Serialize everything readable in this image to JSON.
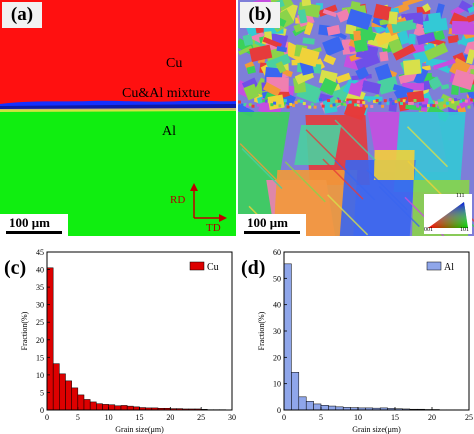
{
  "panel_a": {
    "tag": "(a)",
    "label_top": "Cu",
    "label_interface": "Cu&Al mixture",
    "label_bottom": "Al",
    "axis_rd": "RD",
    "axis_td": "TD",
    "scale": "100 μm",
    "colors": {
      "cu": "#ff1010",
      "al": "#10ee10",
      "interface": "#1530ff",
      "arrow": "#c00000"
    }
  },
  "panel_b": {
    "tag": "(b)",
    "scale": "100 μm",
    "ipf_labels": [
      "111",
      "001",
      "101"
    ]
  },
  "panel_c": {
    "tag": "(c)"
  },
  "panel_d": {
    "tag": "(d)"
  },
  "chart_data": [
    {
      "type": "bar",
      "legend": "Cu",
      "color": "#dd0000",
      "ylabel": "Fraction(%)",
      "xlabel": "Grain size(μm)",
      "xlim": [
        0,
        30
      ],
      "ylim": [
        0,
        45
      ],
      "xticks": [
        0,
        5,
        10,
        15,
        20,
        25,
        30
      ],
      "yticks": [
        0,
        5,
        10,
        15,
        20,
        25,
        30,
        35,
        40,
        45
      ],
      "bin_width": 1,
      "x": [
        0.5,
        1.5,
        2.5,
        3.5,
        4.5,
        5.5,
        6.5,
        7.5,
        8.5,
        9.5,
        10.5,
        11.5,
        12.5,
        13.5,
        14.5,
        15.5,
        16.5,
        17.5,
        18.5,
        19.5,
        20.5,
        21.5,
        22.5,
        23.5,
        24.5,
        25.5,
        26.5,
        27.5,
        28.5
      ],
      "values": [
        40.5,
        13.2,
        10.3,
        8.3,
        6.3,
        4.3,
        3.0,
        2.3,
        1.8,
        1.6,
        1.5,
        1.2,
        1.3,
        1.1,
        0.9,
        0.7,
        0.6,
        0.6,
        0.5,
        0.5,
        0.4,
        0.4,
        0.3,
        0.3,
        0.3,
        0.2,
        0.1,
        0.1,
        0.1
      ]
    },
    {
      "type": "bar",
      "legend": "Al",
      "color": "#8fa6ea",
      "ylabel": "Fraction(%)",
      "xlabel": "Grain size(μm)",
      "xlim": [
        0,
        25
      ],
      "ylim": [
        0,
        60
      ],
      "xticks": [
        0,
        5,
        10,
        15,
        20,
        25
      ],
      "yticks": [
        0,
        10,
        20,
        30,
        40,
        50,
        60
      ],
      "bin_width": 1,
      "x": [
        0.5,
        1.5,
        2.5,
        3.5,
        4.5,
        5.5,
        6.5,
        7.5,
        8.5,
        9.5,
        10.5,
        11.5,
        12.5,
        13.5,
        14.5,
        15.5,
        16.5,
        17.5,
        18.5,
        19.5,
        20.5,
        21.5,
        22.5,
        23.5
      ],
      "values": [
        55.5,
        14.3,
        5.0,
        3.3,
        2.3,
        1.8,
        1.5,
        1.2,
        1.0,
        0.9,
        0.8,
        0.8,
        0.7,
        0.8,
        0.6,
        0.5,
        0.4,
        0.3,
        0.3,
        0.2,
        0.2,
        0.1,
        0.1,
        0.1
      ]
    }
  ]
}
